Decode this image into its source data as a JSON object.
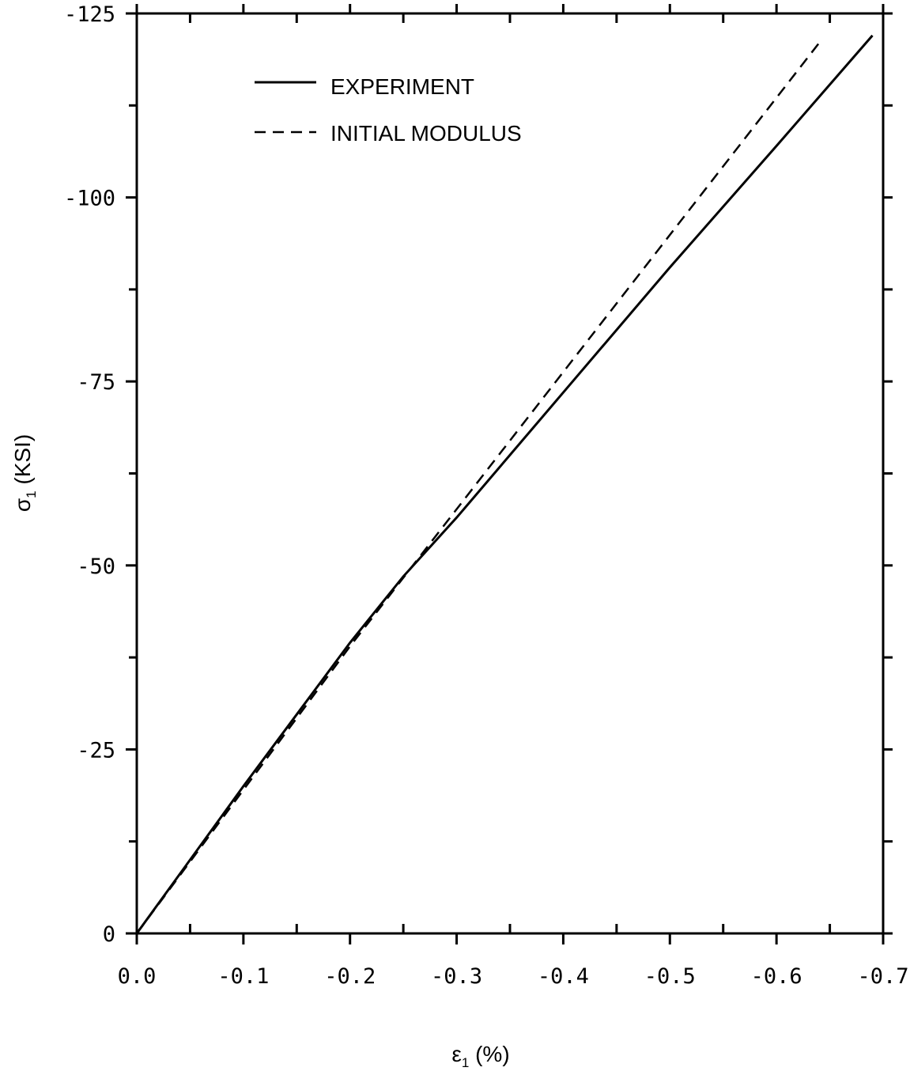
{
  "chart_data": {
    "type": "line",
    "title": "",
    "xlabel": {
      "symbol": "ε",
      "sub": "1",
      "rest": " (%)"
    },
    "ylabel": {
      "symbol": "σ",
      "sub": "1",
      "rest": " (KSI)"
    },
    "xlim": [
      0.0,
      -0.7
    ],
    "ylim": [
      0,
      -125
    ],
    "x_ticks": [
      "0.0",
      "-0.1",
      "-0.2",
      "-0.3",
      "-0.4",
      "-0.5",
      "-0.6",
      "-0.7"
    ],
    "x_tick_values": [
      0.0,
      -0.1,
      -0.2,
      -0.3,
      -0.4,
      -0.5,
      -0.6,
      -0.7
    ],
    "x_minor_ticks": [
      -0.05,
      -0.15,
      -0.25,
      -0.35,
      -0.45,
      -0.55,
      -0.65
    ],
    "y_ticks": [
      "0",
      "-25",
      "-50",
      "-75",
      "-100",
      "-125"
    ],
    "y_tick_values": [
      0,
      -25,
      -50,
      -75,
      -100,
      -125
    ],
    "y_minor_ticks": [
      -12.5,
      -37.5,
      -62.5,
      -87.5,
      -112.5
    ],
    "legend": {
      "position": "top-left"
    },
    "series": [
      {
        "name": "EXPERIMENT",
        "style": "solid",
        "x": [
          0.0,
          -0.1,
          -0.2,
          -0.25,
          -0.3,
          -0.4,
          -0.5,
          -0.6,
          -0.69
        ],
        "y": [
          0,
          -20,
          -39.5,
          -48.5,
          -56.5,
          -73.5,
          -90.5,
          -107,
          -122
        ]
      },
      {
        "name": "INITIAL MODULUS",
        "style": "dashed",
        "x": [
          0.0,
          -0.2,
          -0.64
        ],
        "y": [
          0,
          -39,
          -121
        ]
      }
    ]
  }
}
